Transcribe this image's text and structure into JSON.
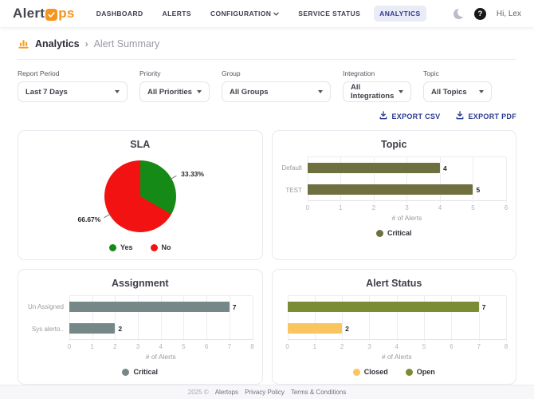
{
  "navbar": {
    "logo": {
      "text_dark": "Alert",
      "text_orange": "ps",
      "accent": "#F7941E"
    },
    "items": [
      {
        "label": "DASHBOARD",
        "active": false,
        "has_dropdown": false
      },
      {
        "label": "ALERTS",
        "active": false,
        "has_dropdown": false
      },
      {
        "label": "CONFIGURATION",
        "active": false,
        "has_dropdown": true
      },
      {
        "label": "SERVICE STATUS",
        "active": false,
        "has_dropdown": false
      },
      {
        "label": "ANALYTICS",
        "active": true,
        "has_dropdown": false
      }
    ],
    "help_label": "?",
    "greeting": "Hi, Lex"
  },
  "breadcrumb": {
    "section": "Analytics",
    "separator": "›",
    "page": "Alert Summary"
  },
  "filters": [
    {
      "label": "Report Period",
      "value": "Last 7 Days"
    },
    {
      "label": "Priority",
      "value": "All Priorities"
    },
    {
      "label": "Group",
      "value": "All Groups"
    },
    {
      "label": "Integration",
      "value": "All Integrations"
    },
    {
      "label": "Topic",
      "value": "All Topics"
    }
  ],
  "export": {
    "csv_label": "EXPORT CSV",
    "pdf_label": "EXPORT PDF",
    "color": "#2B3990"
  },
  "chart_data": [
    {
      "type": "pie",
      "title": "SLA",
      "slices": [
        {
          "label": "Yes",
          "value": 33.33,
          "display": "33.33%",
          "color": "#168A16"
        },
        {
          "label": "No",
          "value": 66.67,
          "display": "66.67%",
          "color": "#F31212"
        }
      ],
      "legend": [
        {
          "label": "Yes",
          "color": "#168A16"
        },
        {
          "label": "No",
          "color": "#F31212"
        }
      ],
      "legend_position": "bottom"
    },
    {
      "type": "bar",
      "orientation": "horizontal",
      "title": "Topic",
      "categories": [
        "Default",
        "TEST"
      ],
      "values": [
        4,
        5
      ],
      "bar_colors": [
        "#6E7040",
        "#6E7040"
      ],
      "show_category_labels": true,
      "xlabel": "# of Alerts",
      "xlim": [
        0,
        6
      ],
      "tick_step": 1,
      "grid": true,
      "legend": [
        {
          "label": "Critical",
          "color": "#6E7040"
        }
      ],
      "legend_position": "bottom"
    },
    {
      "type": "bar",
      "orientation": "horizontal",
      "title": "Assignment",
      "categories": [
        "Un Assigned",
        "Sys alerto.."
      ],
      "values": [
        7,
        2
      ],
      "bar_colors": [
        "#758787",
        "#758787"
      ],
      "show_category_labels": true,
      "xlabel": "# of Alerts",
      "xlim": [
        0,
        8
      ],
      "tick_step": 1,
      "grid": true,
      "legend": [
        {
          "label": "Critical",
          "color": "#758787"
        }
      ],
      "legend_position": "bottom"
    },
    {
      "type": "bar",
      "orientation": "horizontal",
      "title": "Alert Status",
      "categories": [
        "Open",
        "Closed"
      ],
      "values": [
        7,
        2
      ],
      "bar_colors": [
        "#7A8C35",
        "#FAC45E"
      ],
      "show_category_labels": false,
      "xlabel": "# of Alerts",
      "xlim": [
        0,
        8
      ],
      "tick_step": 1,
      "grid": true,
      "legend": [
        {
          "label": "Closed",
          "color": "#FAC45E"
        },
        {
          "label": "Open",
          "color": "#7A8C35"
        }
      ],
      "legend_position": "bottom"
    }
  ],
  "footer": {
    "copyright": "2025 ©",
    "brand": "Alertops",
    "links": [
      "Privacy Policy",
      "Terms & Conditions"
    ]
  }
}
